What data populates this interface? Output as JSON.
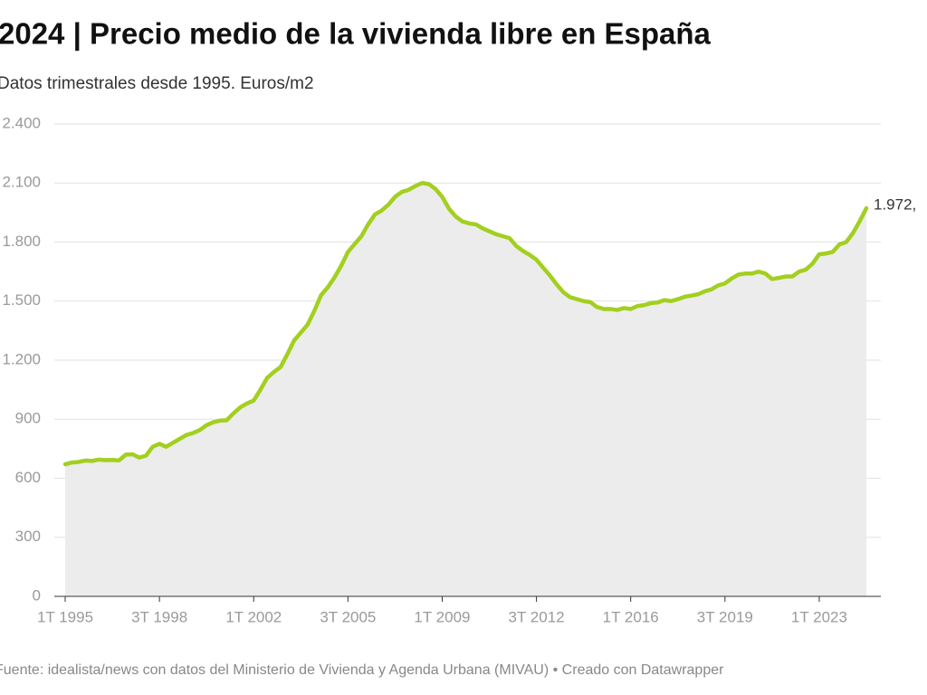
{
  "chart_data": {
    "type": "area-line",
    "title": "2024 | Precio medio de la vivienda libre en España",
    "subtitle": "Datos trimestrales desde 1995. Euros/m2",
    "source": "Fuente: idealista/news con datos del Ministerio de Vivienda y Agenda Urbana (MIVAU) • Creado con Datawrapper",
    "color": "#a3cf1f",
    "area_color": "#ececec",
    "grid": true,
    "ylim": [
      0,
      2400
    ],
    "yticks": [
      0,
      300,
      600,
      900,
      {
        "value": 1200,
        "label": "1.200"
      },
      {
        "value": 1500,
        "label": "1.500"
      },
      {
        "value": 1800,
        "label": "1.800"
      },
      {
        "value": 2100,
        "label": "2.100"
      },
      {
        "value": 2400,
        "label": "2.400"
      }
    ],
    "categories": [
      "1T 1995",
      null,
      null,
      null,
      null,
      null,
      null,
      null,
      null,
      null,
      null,
      null,
      null,
      null,
      "3T 1998",
      null,
      null,
      null,
      null,
      null,
      null,
      null,
      null,
      null,
      null,
      null,
      null,
      null,
      "1T 2002",
      null,
      null,
      null,
      null,
      null,
      null,
      null,
      null,
      null,
      null,
      null,
      null,
      null,
      "3T 2005",
      null,
      null,
      null,
      null,
      null,
      null,
      null,
      null,
      null,
      null,
      null,
      null,
      null,
      "1T 2009",
      null,
      null,
      null,
      null,
      null,
      null,
      null,
      null,
      null,
      null,
      null,
      null,
      null,
      "3T 2012",
      null,
      null,
      null,
      null,
      null,
      null,
      null,
      null,
      null,
      null,
      null,
      null,
      null,
      "1T 2016",
      null,
      null,
      null,
      null,
      null,
      null,
      null,
      null,
      null,
      null,
      null,
      null,
      null,
      "3T 2019",
      null,
      null,
      null,
      null,
      null,
      null,
      null,
      null,
      null,
      null,
      null,
      null,
      null,
      "1T 2023",
      null,
      null,
      null,
      null,
      null,
      null,
      null
    ],
    "values": [
      671,
      680,
      683,
      690,
      688,
      695,
      692,
      693,
      691,
      720,
      722,
      705,
      715,
      760,
      775,
      760,
      780,
      800,
      820,
      830,
      845,
      870,
      885,
      893,
      895,
      930,
      960,
      980,
      995,
      1050,
      1110,
      1140,
      1165,
      1230,
      1300,
      1340,
      1380,
      1450,
      1530,
      1570,
      1620,
      1680,
      1750,
      1790,
      1830,
      1890,
      1940,
      1960,
      1990,
      2030,
      2055,
      2065,
      2085,
      2100,
      2095,
      2070,
      2030,
      1970,
      1930,
      1905,
      1895,
      1890,
      1870,
      1855,
      1840,
      1830,
      1820,
      1780,
      1755,
      1735,
      1710,
      1670,
      1630,
      1585,
      1545,
      1520,
      1510,
      1500,
      1495,
      1470,
      1460,
      1460,
      1455,
      1465,
      1460,
      1475,
      1480,
      1490,
      1493,
      1505,
      1500,
      1510,
      1522,
      1528,
      1535,
      1550,
      1560,
      1580,
      1590,
      1615,
      1635,
      1640,
      1640,
      1650,
      1640,
      1612,
      1618,
      1625,
      1625,
      1650,
      1660,
      1690,
      1738,
      1742,
      1750,
      1788,
      1800,
      1845,
      1905,
      1972
    ],
    "value_labels": [
      null,
      null,
      null,
      null,
      null,
      null,
      null,
      null,
      null,
      null,
      null,
      null,
      null,
      null,
      null,
      null,
      null,
      null,
      null,
      null,
      null,
      null,
      null,
      null,
      null,
      null,
      null,
      null,
      null,
      null,
      null,
      null,
      null,
      null,
      null,
      null,
      null,
      null,
      null,
      null,
      null,
      null,
      null,
      null,
      null,
      null,
      null,
      null,
      null,
      null,
      null,
      null,
      null,
      null,
      null,
      null,
      null,
      null,
      null,
      null,
      null,
      null,
      null,
      null,
      null,
      null,
      null,
      null,
      null,
      null,
      null,
      null,
      null,
      null,
      null,
      null,
      null,
      null,
      null,
      null,
      null,
      null,
      null,
      null,
      null,
      null,
      null,
      null,
      null,
      null,
      null,
      null,
      null,
      null,
      null,
      null,
      null,
      null,
      null,
      null,
      null,
      null,
      null,
      null,
      null,
      null,
      null,
      null,
      null,
      null,
      null,
      null,
      null,
      null,
      null,
      null,
      null,
      null,
      null,
      "1.972,"
    ]
  }
}
